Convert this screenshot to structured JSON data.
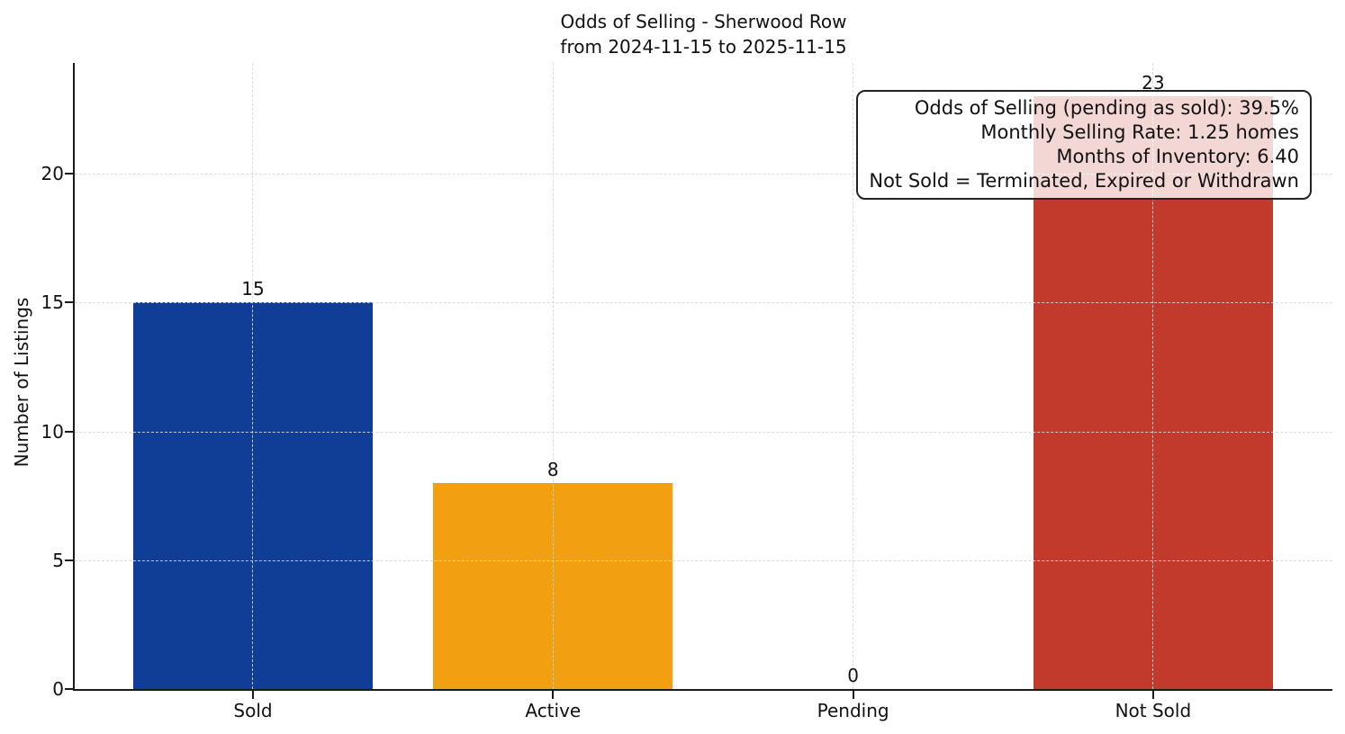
{
  "title": {
    "line1": "Odds of Selling - Sherwood Row",
    "line2": "from 2024-11-15 to 2025-11-15"
  },
  "chart_data": {
    "type": "bar",
    "title": "Odds of Selling - Sherwood Row\nfrom 2024-11-15 to 2025-11-15",
    "categories": [
      "Sold",
      "Active",
      "Pending",
      "Not Sold"
    ],
    "values": [
      15,
      8,
      0,
      23
    ],
    "value_labels": [
      "15",
      "8",
      "0",
      "23"
    ],
    "bar_colors": [
      "#103d96",
      "#f2a012",
      "#888888",
      "#c23a2b"
    ],
    "xlabel": "",
    "ylabel": "Number of Listings",
    "yticks": [
      0,
      5,
      10,
      15,
      20
    ],
    "ylim": [
      0,
      24.3
    ],
    "grid": "dashed-both-directions",
    "legend_position": "none",
    "annotation_lines": [
      "Odds of Selling (pending as sold): 39.5%",
      "Monthly Selling Rate: 1.25 homes",
      "Months of Inventory: 6.40",
      "Not Sold = Terminated, Expired or Withdrawn"
    ]
  },
  "colors": {
    "axis": "#1a1a1a",
    "gridline": "#d6d6d6",
    "annotation_border": "#222222",
    "annotation_background": "rgba(255,255,255,0.8)",
    "background": "#ffffff"
  }
}
